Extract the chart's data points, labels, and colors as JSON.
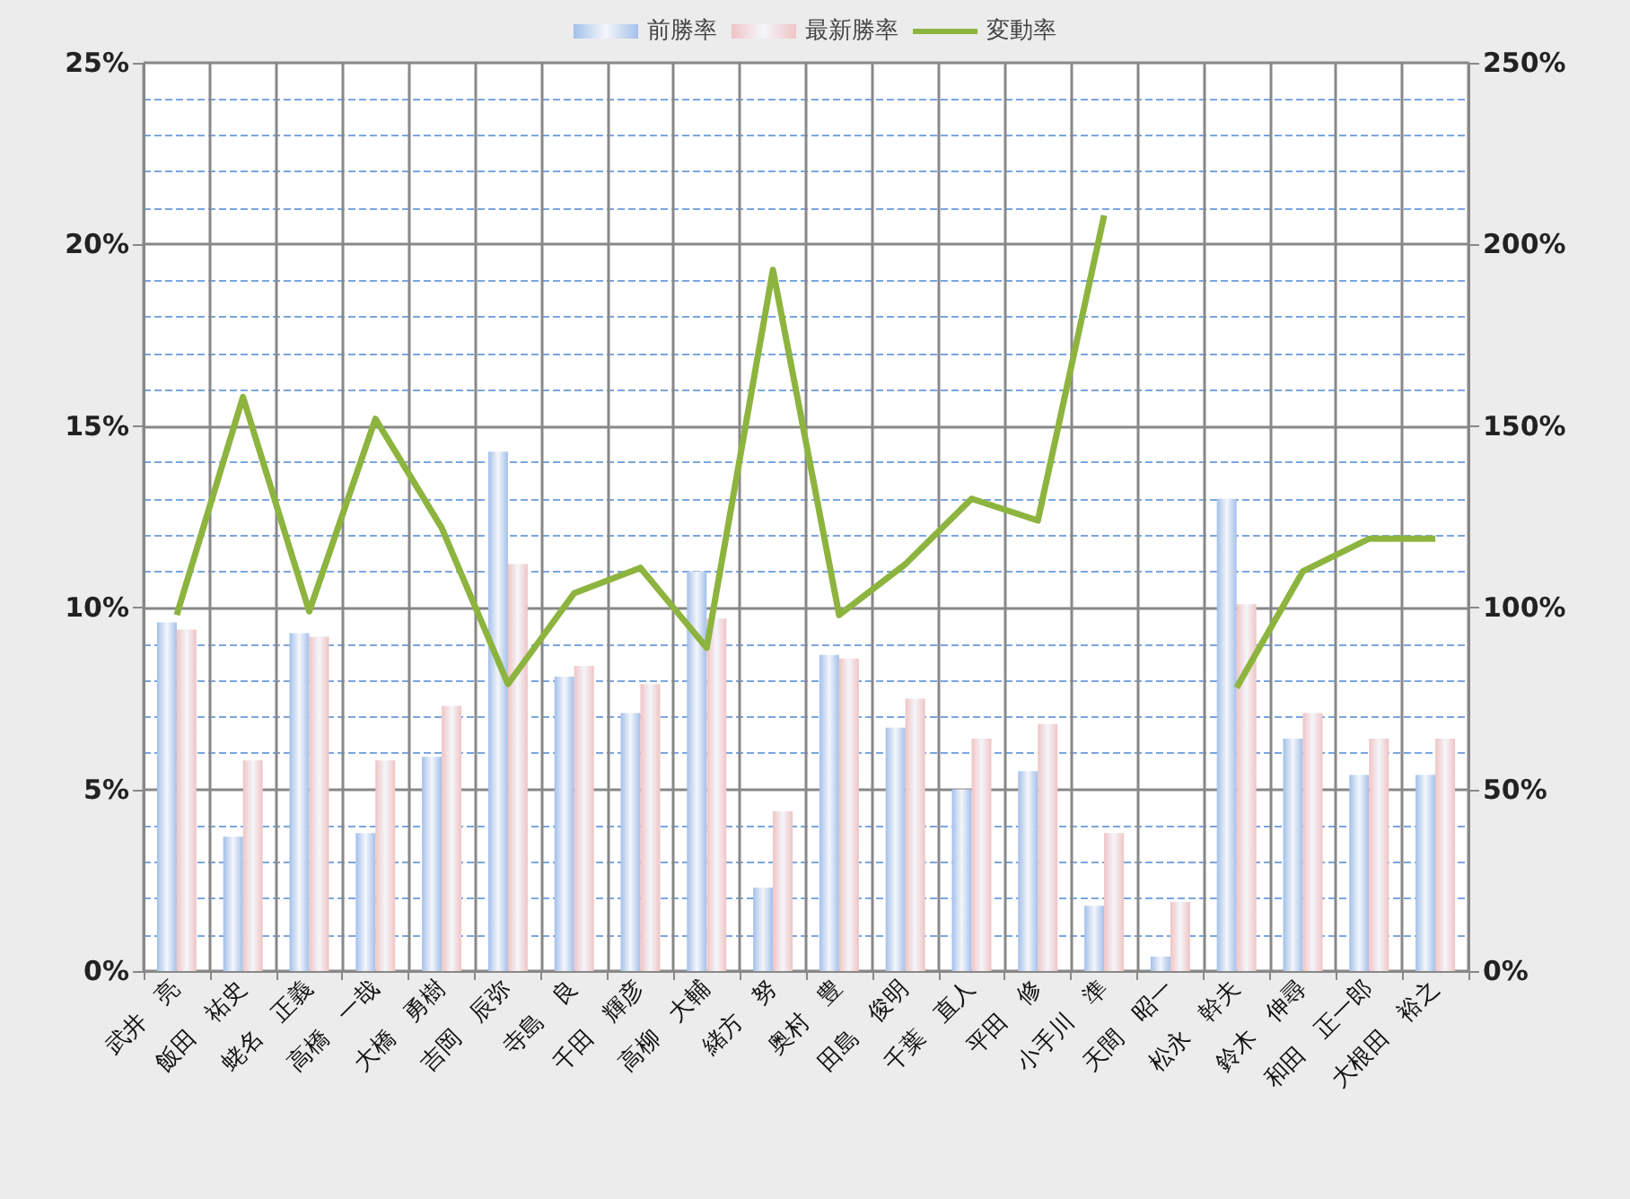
{
  "chart_data": {
    "type": "bar",
    "categories": [
      "武井　亮",
      "飯田　祐史",
      "蛯名　正義",
      "高橋　一哉",
      "大橋　勇樹",
      "吉岡　辰弥",
      "寺島　良",
      "千田　輝彦",
      "高柳　大輔",
      "緒方　努",
      "奥村　豊",
      "田島　俊明",
      "千葉　直人",
      "平田　修",
      "小手川　準",
      "天間　昭一",
      "松永　幹夫",
      "鈴木　伸尋",
      "和田　正一郎",
      "大根田　裕之"
    ],
    "series": [
      {
        "name": "前勝率",
        "color": "#a3c0ea",
        "values": [
          9.6,
          3.7,
          9.3,
          3.8,
          5.9,
          14.3,
          8.1,
          7.1,
          11.0,
          2.3,
          8.7,
          6.7,
          5.0,
          5.5,
          1.8,
          0.4,
          13.0,
          6.4,
          5.4,
          5.4
        ]
      },
      {
        "name": "最新勝率",
        "color": "#f0c4c4",
        "values": [
          9.4,
          5.8,
          9.2,
          5.8,
          7.3,
          11.2,
          8.4,
          7.9,
          9.7,
          4.4,
          8.6,
          7.5,
          6.4,
          6.8,
          3.8,
          1.9,
          10.1,
          7.1,
          6.4,
          6.4
        ]
      },
      {
        "name": "変動率",
        "type": "line",
        "axis": "y2",
        "color": "#8db43e",
        "values": [
          98,
          158,
          99,
          152,
          122,
          79,
          104,
          111,
          89,
          193,
          98,
          112,
          130,
          124,
          208,
          null,
          78,
          110,
          119,
          119
        ]
      }
    ],
    "ylim": [
      0,
      25
    ],
    "yticks": [
      {
        "value": 0,
        "label": "0%"
      },
      {
        "value": 1,
        "label": null
      },
      {
        "value": 2,
        "label": null
      },
      {
        "value": 3,
        "label": null
      },
      {
        "value": 4,
        "label": null
      },
      {
        "value": 5,
        "label": "5%"
      },
      {
        "value": 6,
        "label": null
      },
      {
        "value": 7,
        "label": null
      },
      {
        "value": 8,
        "label": null
      },
      {
        "value": 9,
        "label": null
      },
      {
        "value": 10,
        "label": "10%"
      },
      {
        "value": 11,
        "label": null
      },
      {
        "value": 12,
        "label": null
      },
      {
        "value": 13,
        "label": null
      },
      {
        "value": 14,
        "label": null
      },
      {
        "value": 15,
        "label": "15%"
      },
      {
        "value": 16,
        "label": null
      },
      {
        "value": 17,
        "label": null
      },
      {
        "value": 18,
        "label": null
      },
      {
        "value": 19,
        "label": null
      },
      {
        "value": 20,
        "label": "20%"
      },
      {
        "value": 21,
        "label": null
      },
      {
        "value": 22,
        "label": null
      },
      {
        "value": 23,
        "label": null
      },
      {
        "value": 24,
        "label": null
      },
      {
        "value": 25,
        "label": "25%"
      }
    ],
    "y2lim": [
      0,
      250
    ],
    "y2ticks": [
      {
        "value": 0,
        "label": "0%"
      },
      {
        "value": 50,
        "label": "50%"
      },
      {
        "value": 100,
        "label": "100%"
      },
      {
        "value": 150,
        "label": "150%"
      },
      {
        "value": 200,
        "label": "200%"
      },
      {
        "value": 250,
        "label": "250%"
      }
    ],
    "grid": true,
    "legend": "top"
  }
}
